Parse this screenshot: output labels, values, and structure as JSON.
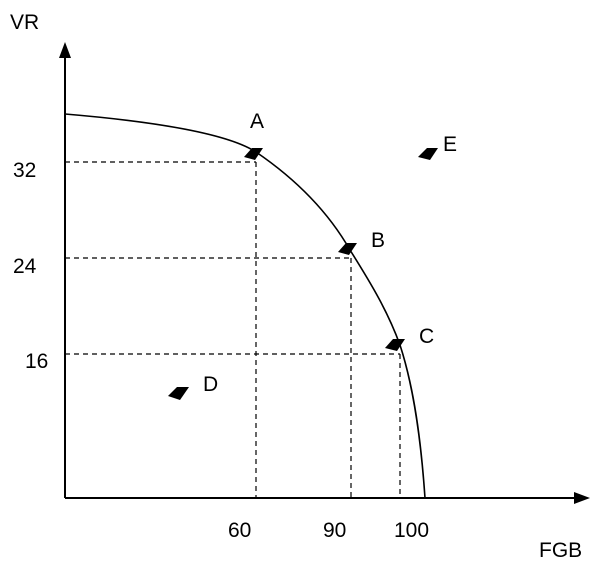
{
  "diagram": {
    "y_axis_label": "VR",
    "x_axis_label": "FGB",
    "y_ticks": [
      "32",
      "24",
      "16"
    ],
    "x_ticks": [
      "60",
      "90",
      "100"
    ],
    "points": [
      {
        "label": "A",
        "fgb": 60,
        "vr": 32,
        "on_curve": true
      },
      {
        "label": "B",
        "fgb": 90,
        "vr": 24,
        "on_curve": true
      },
      {
        "label": "C",
        "fgb": 100,
        "vr": 16,
        "on_curve": true
      },
      {
        "label": "D",
        "on_curve": false
      },
      {
        "label": "E",
        "on_curve": false
      }
    ]
  }
}
